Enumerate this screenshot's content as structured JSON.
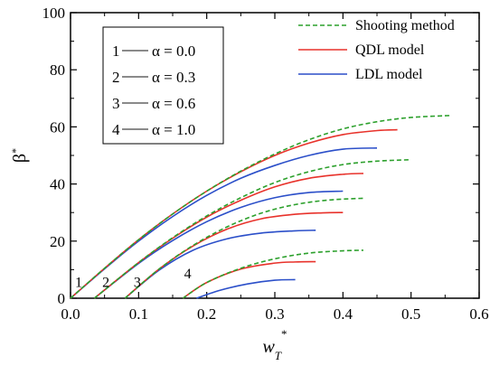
{
  "chart_data": {
    "type": "line",
    "xlabel_base": "w",
    "xlabel_sub": "T",
    "xlabel_sup": "*",
    "ylabel_base": "β",
    "ylabel_sup": "*",
    "xlim": [
      0.0,
      0.6
    ],
    "ylim": [
      0,
      100
    ],
    "xticks": [
      0.0,
      0.1,
      0.2,
      0.3,
      0.4,
      0.5,
      0.6
    ],
    "xtick_labels": [
      "0.0",
      "0.1",
      "0.2",
      "0.3",
      "0.4",
      "0.5",
      "0.6"
    ],
    "yticks": [
      0,
      20,
      40,
      60,
      80,
      100
    ],
    "ytick_labels": [
      "0",
      "20",
      "40",
      "60",
      "80",
      "100"
    ],
    "grid": false,
    "legend": {
      "placement": "top-right",
      "entries": [
        {
          "label": "Shooting method",
          "color": "#2ca02c",
          "style": "dashed"
        },
        {
          "label": "QDL model",
          "color": "#e8322b",
          "style": "solid"
        },
        {
          "label": "LDL model",
          "color": "#2b4fc9",
          "style": "solid"
        }
      ]
    },
    "alpha_box": {
      "placement": "top-left",
      "entries": [
        {
          "number": "1",
          "text": "α = 0.0"
        },
        {
          "number": "2",
          "text": "α = 0.3"
        },
        {
          "number": "3",
          "text": "α = 0.6"
        },
        {
          "number": "4",
          "text": "α = 1.0"
        }
      ]
    },
    "curve_labels": [
      {
        "text": "1",
        "x": 0.012,
        "y": 4
      },
      {
        "text": "2",
        "x": 0.052,
        "y": 4
      },
      {
        "text": "3",
        "x": 0.098,
        "y": 4
      },
      {
        "text": "4",
        "x": 0.172,
        "y": 7
      }
    ],
    "series": [
      {
        "group": "1",
        "method": "Shooting method",
        "color": "#2ca02c",
        "dash": true,
        "x": [
          0.0,
          0.05,
          0.1,
          0.15,
          0.2,
          0.25,
          0.3,
          0.35,
          0.4,
          0.45,
          0.5,
          0.56
        ],
        "y": [
          0,
          10.5,
          20.5,
          29.5,
          37.5,
          44.5,
          50.5,
          55.5,
          59.3,
          61.8,
          63.3,
          64.0
        ]
      },
      {
        "group": "1",
        "method": "QDL model",
        "color": "#e8322b",
        "dash": false,
        "x": [
          0.0,
          0.05,
          0.1,
          0.15,
          0.2,
          0.25,
          0.3,
          0.35,
          0.4,
          0.45,
          0.48
        ],
        "y": [
          0,
          10.5,
          20.5,
          29.5,
          37.5,
          44.3,
          50.0,
          54.3,
          57.3,
          58.7,
          59.0
        ]
      },
      {
        "group": "1",
        "method": "LDL model",
        "color": "#2b4fc9",
        "dash": false,
        "x": [
          0.0,
          0.05,
          0.1,
          0.15,
          0.2,
          0.25,
          0.3,
          0.35,
          0.4,
          0.45
        ],
        "y": [
          0,
          10.3,
          20.0,
          28.6,
          36.0,
          42.0,
          46.5,
          50.0,
          52.2,
          52.6
        ]
      },
      {
        "group": "2",
        "method": "Shooting method",
        "color": "#2ca02c",
        "dash": true,
        "x": [
          0.035,
          0.1,
          0.15,
          0.2,
          0.25,
          0.3,
          0.35,
          0.4,
          0.45,
          0.5
        ],
        "y": [
          0,
          12.5,
          21.2,
          28.8,
          35.2,
          40.5,
          44.3,
          46.8,
          48.0,
          48.5
        ]
      },
      {
        "group": "2",
        "method": "QDL model",
        "color": "#e8322b",
        "dash": false,
        "x": [
          0.035,
          0.1,
          0.15,
          0.2,
          0.25,
          0.3,
          0.35,
          0.4,
          0.43
        ],
        "y": [
          0,
          12.5,
          21.0,
          28.4,
          34.3,
          39.0,
          42.0,
          43.4,
          43.7
        ]
      },
      {
        "group": "2",
        "method": "LDL model",
        "color": "#2b4fc9",
        "dash": false,
        "x": [
          0.035,
          0.1,
          0.15,
          0.2,
          0.25,
          0.3,
          0.35,
          0.4
        ],
        "y": [
          0,
          12.2,
          20.2,
          26.8,
          31.8,
          35.2,
          37.0,
          37.5
        ]
      },
      {
        "group": "3",
        "method": "Shooting method",
        "color": "#2ca02c",
        "dash": true,
        "x": [
          0.08,
          0.13,
          0.18,
          0.23,
          0.28,
          0.33,
          0.38,
          0.43
        ],
        "y": [
          0,
          10.2,
          18.5,
          25.0,
          29.8,
          32.8,
          34.4,
          35.0
        ]
      },
      {
        "group": "3",
        "method": "QDL model",
        "color": "#e8322b",
        "dash": false,
        "x": [
          0.08,
          0.13,
          0.18,
          0.23,
          0.28,
          0.33,
          0.37,
          0.4
        ],
        "y": [
          0,
          10.2,
          18.3,
          24.2,
          27.8,
          29.4,
          29.9,
          30.0
        ]
      },
      {
        "group": "3",
        "method": "LDL model",
        "color": "#2b4fc9",
        "dash": false,
        "x": [
          0.08,
          0.13,
          0.18,
          0.23,
          0.28,
          0.33,
          0.36
        ],
        "y": [
          0,
          9.8,
          16.8,
          20.8,
          22.8,
          23.6,
          23.8
        ]
      },
      {
        "group": "4",
        "method": "Shooting method",
        "color": "#2ca02c",
        "dash": true,
        "x": [
          0.165,
          0.2,
          0.25,
          0.3,
          0.35,
          0.4,
          0.43
        ],
        "y": [
          0,
          5.5,
          10.5,
          13.8,
          15.8,
          16.6,
          16.8
        ]
      },
      {
        "group": "4",
        "method": "QDL model",
        "color": "#e8322b",
        "dash": false,
        "x": [
          0.165,
          0.2,
          0.25,
          0.3,
          0.33,
          0.36
        ],
        "y": [
          0,
          5.5,
          10.2,
          12.3,
          12.7,
          12.8
        ]
      },
      {
        "group": "4",
        "method": "LDL model",
        "color": "#2b4fc9",
        "dash": false,
        "x": [
          0.185,
          0.22,
          0.26,
          0.3,
          0.33
        ],
        "y": [
          0,
          2.8,
          5.0,
          6.3,
          6.5
        ]
      }
    ]
  }
}
